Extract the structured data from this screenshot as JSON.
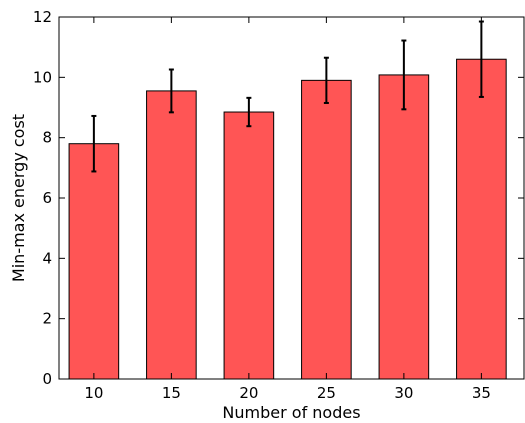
{
  "chart_data": {
    "type": "bar",
    "xlabel": "Number of nodes",
    "ylabel": "Min-max energy cost",
    "categories": [
      "10",
      "15",
      "20",
      "25",
      "30",
      "35"
    ],
    "values": [
      7.8,
      9.55,
      8.85,
      9.9,
      10.08,
      10.6
    ],
    "error": [
      0.92,
      0.71,
      0.47,
      0.75,
      1.14,
      1.25
    ],
    "ylim": [
      0,
      12
    ],
    "yticks": [
      0,
      2,
      4,
      6,
      8,
      10,
      12
    ],
    "grid": false,
    "legend": "none",
    "colors": {
      "bar_fill": "#ff5555",
      "bar_edge": "#000000",
      "error_bar": "#000000",
      "axis": "#000000"
    }
  }
}
